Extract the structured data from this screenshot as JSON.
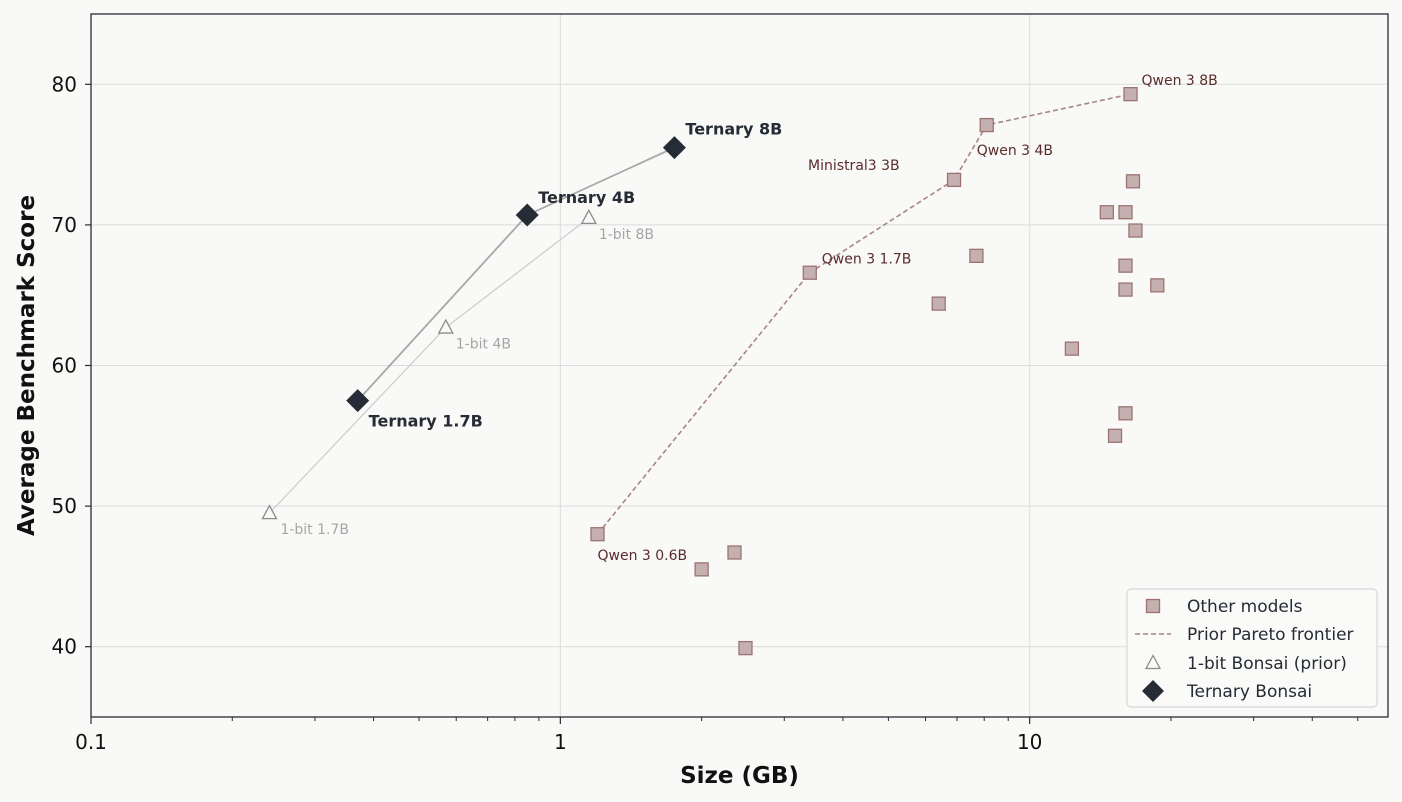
{
  "chart_data": {
    "type": "scatter",
    "xlabel": "Size (GB)",
    "ylabel": "Average Benchmark Score",
    "xscale": "log",
    "xlim": [
      0.1,
      58
    ],
    "ylim": [
      35,
      85
    ],
    "grid": true,
    "legend_position": "bottom-right",
    "x_ticks": [
      {
        "value": 0.1,
        "label": "0.1"
      },
      {
        "value": 1,
        "label": "1"
      },
      {
        "value": 10,
        "label": "10"
      }
    ],
    "y_ticks": [
      {
        "value": 40,
        "label": "40"
      },
      {
        "value": 50,
        "label": "50"
      },
      {
        "value": 60,
        "label": "60"
      },
      {
        "value": 70,
        "label": "70"
      },
      {
        "value": 80,
        "label": "80"
      }
    ],
    "series": [
      {
        "name": "Other models",
        "marker": "square",
        "color": "#c5b0b0",
        "stroke": "#9c7373",
        "points": [
          {
            "x": 1.2,
            "y": 48.0,
            "label": "Qwen 3 0.6B"
          },
          {
            "x": 3.4,
            "y": 66.6,
            "label": "Qwen 3 1.7B"
          },
          {
            "x": 6.9,
            "y": 73.2,
            "label": "Ministral3 3B"
          },
          {
            "x": 8.1,
            "y": 77.1,
            "label": "Qwen 3 4B"
          },
          {
            "x": 16.4,
            "y": 79.3,
            "label": "Qwen 3 8B"
          },
          {
            "x": 2.0,
            "y": 45.5
          },
          {
            "x": 2.35,
            "y": 46.7
          },
          {
            "x": 2.48,
            "y": 39.9
          },
          {
            "x": 6.4,
            "y": 64.4
          },
          {
            "x": 7.7,
            "y": 67.8
          },
          {
            "x": 12.3,
            "y": 61.2
          },
          {
            "x": 14.6,
            "y": 70.9
          },
          {
            "x": 15.2,
            "y": 55.0
          },
          {
            "x": 16.0,
            "y": 70.9
          },
          {
            "x": 16.0,
            "y": 67.1
          },
          {
            "x": 16.0,
            "y": 65.4
          },
          {
            "x": 16.0,
            "y": 56.6
          },
          {
            "x": 16.6,
            "y": 73.1
          },
          {
            "x": 16.8,
            "y": 69.6
          },
          {
            "x": 18.7,
            "y": 65.7
          }
        ]
      },
      {
        "name": "Prior Pareto frontier",
        "type": "line",
        "color": "#a88686",
        "points": [
          {
            "x": 1.2,
            "y": 48.0
          },
          {
            "x": 3.4,
            "y": 66.6
          },
          {
            "x": 6.9,
            "y": 73.2
          },
          {
            "x": 8.1,
            "y": 77.1
          },
          {
            "x": 16.4,
            "y": 79.3
          }
        ]
      },
      {
        "name": "1-bit Bonsai (prior)",
        "marker": "triangle",
        "color": "#8c8c8c",
        "points": [
          {
            "x": 0.24,
            "y": 49.5,
            "label": "1-bit 1.7B"
          },
          {
            "x": 0.57,
            "y": 62.7,
            "label": "1-bit 4B"
          },
          {
            "x": 1.15,
            "y": 70.5,
            "label": "1-bit 8B"
          }
        ]
      },
      {
        "name": "Ternary Bonsai",
        "marker": "diamond",
        "color": "#262c36",
        "points": [
          {
            "x": 0.37,
            "y": 57.5,
            "label": "Ternary 1.7B"
          },
          {
            "x": 0.85,
            "y": 70.7,
            "label": "Ternary 4B"
          },
          {
            "x": 1.75,
            "y": 75.5,
            "label": "Ternary 8B"
          }
        ]
      }
    ]
  }
}
